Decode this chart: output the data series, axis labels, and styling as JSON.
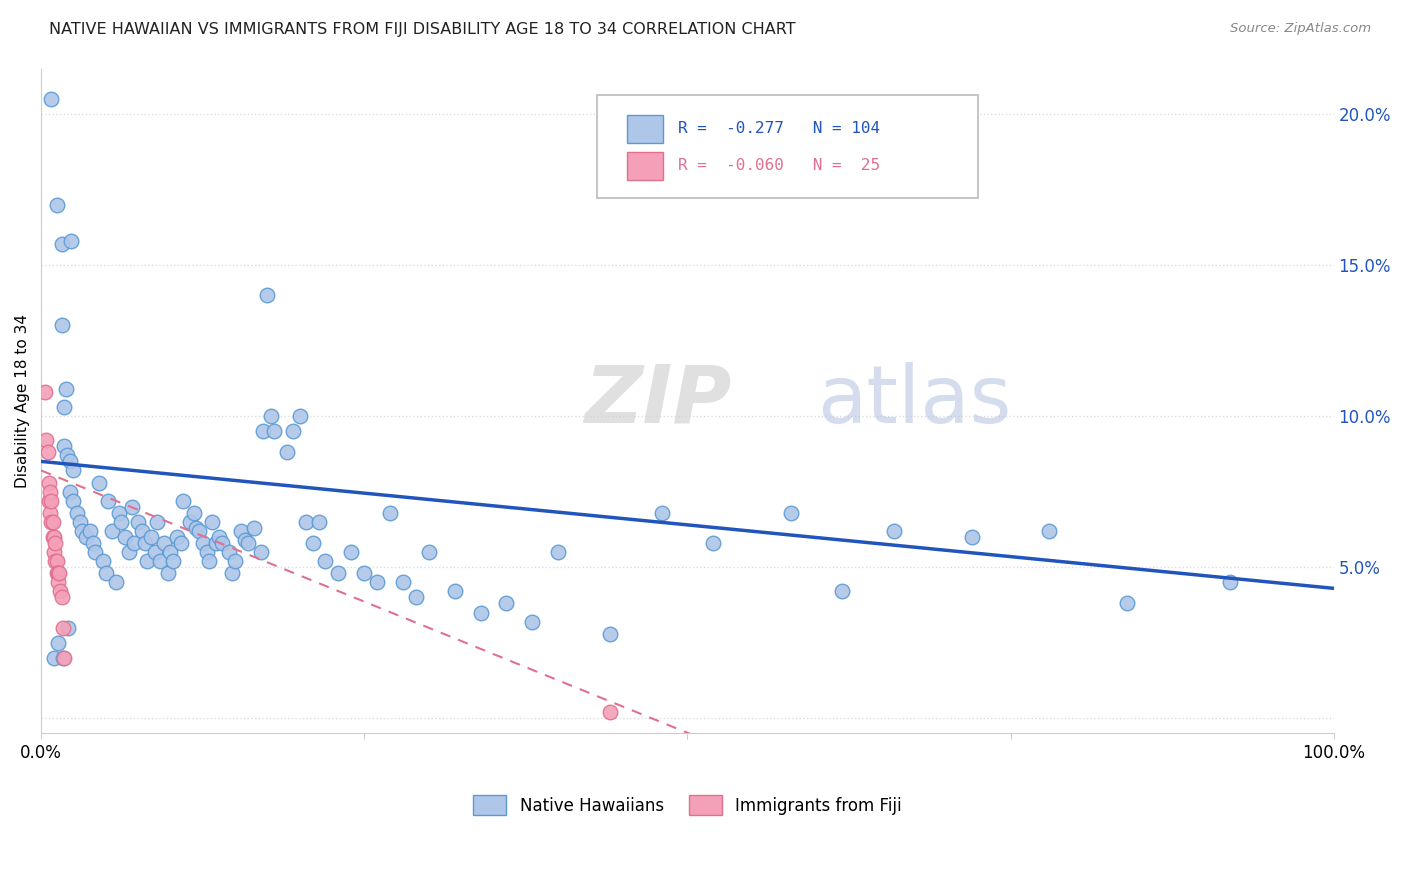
{
  "title": "NATIVE HAWAIIAN VS IMMIGRANTS FROM FIJI DISABILITY AGE 18 TO 34 CORRELATION CHART",
  "source": "Source: ZipAtlas.com",
  "ylabel": "Disability Age 18 to 34",
  "y_ticks": [
    0.0,
    0.05,
    0.1,
    0.15,
    0.2
  ],
  "y_tick_labels": [
    "",
    "5.0%",
    "10.0%",
    "15.0%",
    "20.0%"
  ],
  "x_range": [
    0.0,
    1.0
  ],
  "y_range": [
    -0.005,
    0.215
  ],
  "series1_label": "Native Hawaiians",
  "series2_label": "Immigrants from Fiji",
  "series1_color": "#aec6e8",
  "series2_color": "#f4a0b8",
  "series1_edge": "#5b9bd5",
  "series2_edge": "#e07090",
  "line1_color": "#2255bb",
  "line2_color": "#e07090",
  "R1": -0.277,
  "N1": 104,
  "R2": -0.06,
  "N2": 25,
  "watermark_zip": "ZIP",
  "watermark_atlas": "atlas",
  "background_color": "#ffffff",
  "grid_color": "#dddddd",
  "native_hawaiians_x": [
    0.008,
    0.012,
    0.016,
    0.016,
    0.018,
    0.018,
    0.019,
    0.02,
    0.022,
    0.022,
    0.025,
    0.025,
    0.028,
    0.03,
    0.032,
    0.035,
    0.038,
    0.04,
    0.042,
    0.045,
    0.048,
    0.05,
    0.052,
    0.055,
    0.058,
    0.06,
    0.062,
    0.065,
    0.068,
    0.07,
    0.072,
    0.075,
    0.078,
    0.08,
    0.082,
    0.085,
    0.088,
    0.09,
    0.092,
    0.095,
    0.098,
    0.1,
    0.102,
    0.105,
    0.108,
    0.11,
    0.115,
    0.118,
    0.12,
    0.122,
    0.125,
    0.128,
    0.13,
    0.132,
    0.135,
    0.138,
    0.14,
    0.145,
    0.148,
    0.15,
    0.155,
    0.158,
    0.16,
    0.165,
    0.17,
    0.172,
    0.175,
    0.178,
    0.18,
    0.19,
    0.195,
    0.2,
    0.205,
    0.21,
    0.215,
    0.22,
    0.23,
    0.24,
    0.25,
    0.26,
    0.27,
    0.28,
    0.29,
    0.3,
    0.32,
    0.34,
    0.36,
    0.38,
    0.4,
    0.44,
    0.48,
    0.52,
    0.58,
    0.62,
    0.66,
    0.72,
    0.78,
    0.84,
    0.92,
    0.01,
    0.013,
    0.017,
    0.021,
    0.023
  ],
  "native_hawaiians_y": [
    0.205,
    0.17,
    0.157,
    0.13,
    0.103,
    0.09,
    0.109,
    0.087,
    0.085,
    0.075,
    0.072,
    0.082,
    0.068,
    0.065,
    0.062,
    0.06,
    0.062,
    0.058,
    0.055,
    0.078,
    0.052,
    0.048,
    0.072,
    0.062,
    0.045,
    0.068,
    0.065,
    0.06,
    0.055,
    0.07,
    0.058,
    0.065,
    0.062,
    0.058,
    0.052,
    0.06,
    0.055,
    0.065,
    0.052,
    0.058,
    0.048,
    0.055,
    0.052,
    0.06,
    0.058,
    0.072,
    0.065,
    0.068,
    0.063,
    0.062,
    0.058,
    0.055,
    0.052,
    0.065,
    0.058,
    0.06,
    0.058,
    0.055,
    0.048,
    0.052,
    0.062,
    0.059,
    0.058,
    0.063,
    0.055,
    0.095,
    0.14,
    0.1,
    0.095,
    0.088,
    0.095,
    0.1,
    0.065,
    0.058,
    0.065,
    0.052,
    0.048,
    0.055,
    0.048,
    0.045,
    0.068,
    0.045,
    0.04,
    0.055,
    0.042,
    0.035,
    0.038,
    0.032,
    0.055,
    0.028,
    0.068,
    0.058,
    0.068,
    0.042,
    0.062,
    0.06,
    0.062,
    0.038,
    0.045,
    0.02,
    0.025,
    0.02,
    0.03,
    0.158
  ],
  "fiji_x": [
    0.003,
    0.004,
    0.005,
    0.006,
    0.006,
    0.007,
    0.007,
    0.008,
    0.008,
    0.009,
    0.009,
    0.01,
    0.01,
    0.011,
    0.011,
    0.012,
    0.012,
    0.013,
    0.013,
    0.014,
    0.015,
    0.016,
    0.017,
    0.018,
    0.44
  ],
  "fiji_y": [
    0.108,
    0.092,
    0.088,
    0.078,
    0.072,
    0.075,
    0.068,
    0.072,
    0.065,
    0.065,
    0.06,
    0.06,
    0.055,
    0.058,
    0.052,
    0.052,
    0.048,
    0.048,
    0.045,
    0.048,
    0.042,
    0.04,
    0.03,
    0.02,
    0.002
  ],
  "line1_x_start": 0.0,
  "line1_x_end": 1.0,
  "line1_y_start": 0.085,
  "line1_y_end": 0.043,
  "line2_x_start": 0.0,
  "line2_x_end": 0.53,
  "line2_y_start": 0.082,
  "line2_y_end": -0.01
}
